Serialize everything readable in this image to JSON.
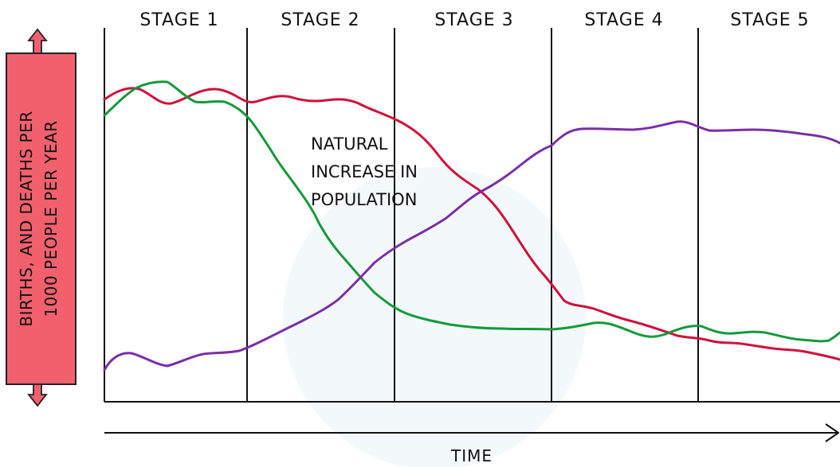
{
  "stages": [
    "STAGE 1",
    "STAGE 2",
    "STAGE 3",
    "STAGE 4",
    "STAGE 5"
  ],
  "y_axis_label": [
    "BIRTHS, AND DEATHS PER",
    "1000 PEOPLE PER YEAR"
  ],
  "x_axis_label": "TIME",
  "annotation": [
    "NATURAL",
    "INCREASE IN",
    "POPULATION"
  ],
  "colors": {
    "birth_line": "#d0103a",
    "death_line": "#149a3a",
    "population_line": "#7a2ea8",
    "y_label_box": "#f2606e"
  }
}
